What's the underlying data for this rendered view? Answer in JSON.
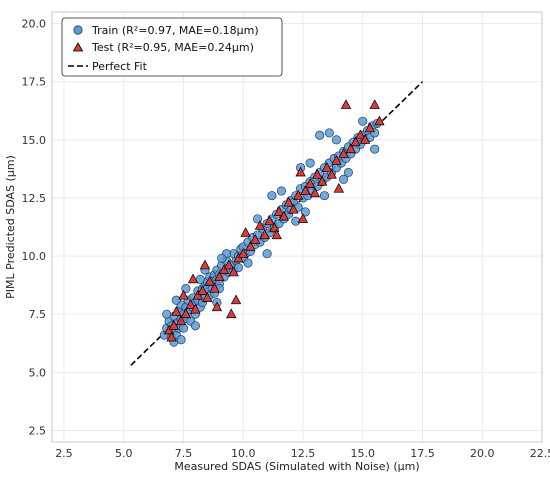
{
  "chart_data": {
    "type": "scatter",
    "xlabel": "Measured SDAS (Simulated with Noise) (μm)",
    "ylabel": "PIML Predicted SDAS (μm)",
    "xlim": [
      2.0,
      22.5
    ],
    "ylim": [
      2.0,
      20.5
    ],
    "xticks": [
      "2.5",
      "5.0",
      "7.5",
      "10.0",
      "12.5",
      "15.0",
      "17.5",
      "20.0",
      "22.5"
    ],
    "yticks": [
      "2.5",
      "5.0",
      "7.5",
      "10.0",
      "12.5",
      "15.0",
      "17.5",
      "20.0"
    ],
    "xtick_values": [
      2.5,
      5.0,
      7.5,
      10.0,
      12.5,
      15.0,
      17.5,
      20.0,
      22.5
    ],
    "ytick_values": [
      2.5,
      5.0,
      7.5,
      10.0,
      12.5,
      15.0,
      17.5,
      20.0
    ],
    "grid": true,
    "legend_position": "top-left",
    "legend": [
      {
        "label": "Train (R²=0.97, MAE=0.18μm)",
        "marker": "circle",
        "color": "#5b9bd5"
      },
      {
        "label": "Test (R²=0.95, MAE=0.24μm)",
        "marker": "triangle",
        "color": "#d93b3b"
      },
      {
        "label": "Perfect Fit",
        "marker": "dashed-line",
        "color": "#000000"
      }
    ],
    "perfect_fit": {
      "x": [
        5.3,
        17.5
      ],
      "y": [
        5.3,
        17.5
      ]
    },
    "series": [
      {
        "name": "Train (R²=0.97, MAE=0.18μm)",
        "color": "#5b9bd5",
        "marker": "circle",
        "points": [
          [
            6.7,
            6.6
          ],
          [
            6.8,
            6.9
          ],
          [
            6.9,
            7.2
          ],
          [
            7.0,
            6.5
          ],
          [
            7.0,
            7.0
          ],
          [
            7.1,
            6.8
          ],
          [
            7.1,
            7.4
          ],
          [
            7.2,
            7.1
          ],
          [
            7.2,
            6.6
          ],
          [
            7.3,
            7.6
          ],
          [
            7.3,
            6.9
          ],
          [
            7.4,
            7.3
          ],
          [
            7.4,
            7.9
          ],
          [
            7.5,
            7.5
          ],
          [
            7.5,
            6.9
          ],
          [
            7.6,
            7.8
          ],
          [
            7.6,
            7.3
          ],
          [
            7.7,
            8.1
          ],
          [
            7.7,
            7.6
          ],
          [
            7.8,
            7.7
          ],
          [
            7.8,
            7.2
          ],
          [
            7.9,
            8.2
          ],
          [
            7.9,
            7.8
          ],
          [
            8.0,
            8.0
          ],
          [
            8.0,
            7.5
          ],
          [
            8.1,
            8.5
          ],
          [
            8.1,
            8.1
          ],
          [
            8.2,
            8.3
          ],
          [
            8.2,
            7.8
          ],
          [
            8.3,
            8.6
          ],
          [
            8.3,
            8.0
          ],
          [
            8.4,
            8.7
          ],
          [
            8.4,
            8.2
          ],
          [
            8.5,
            8.6
          ],
          [
            8.5,
            8.9
          ],
          [
            8.6,
            8.3
          ],
          [
            8.6,
            9.1
          ],
          [
            8.7,
            8.6
          ],
          [
            8.7,
            8.9
          ],
          [
            8.8,
            9.2
          ],
          [
            8.8,
            8.4
          ],
          [
            8.9,
            9.0
          ],
          [
            8.9,
            9.4
          ],
          [
            9.0,
            8.8
          ],
          [
            9.0,
            9.2
          ],
          [
            9.1,
            9.6
          ],
          [
            9.2,
            9.1
          ],
          [
            9.3,
            9.4
          ],
          [
            9.3,
            9.8
          ],
          [
            9.4,
            9.3
          ],
          [
            9.5,
            9.6
          ],
          [
            9.6,
            10.1
          ],
          [
            9.6,
            9.4
          ],
          [
            9.7,
            9.8
          ],
          [
            9.8,
            10.0
          ],
          [
            9.9,
            10.3
          ],
          [
            10.0,
            9.9
          ],
          [
            10.0,
            10.4
          ],
          [
            10.1,
            10.1
          ],
          [
            10.2,
            10.6
          ],
          [
            10.3,
            10.2
          ],
          [
            10.4,
            10.8
          ],
          [
            10.5,
            10.5
          ],
          [
            10.6,
            10.9
          ],
          [
            10.7,
            10.6
          ],
          [
            10.8,
            11.2
          ],
          [
            10.9,
            10.8
          ],
          [
            11.0,
            11.4
          ],
          [
            11.1,
            11.0
          ],
          [
            11.2,
            11.6
          ],
          [
            11.3,
            11.2
          ],
          [
            11.4,
            11.8
          ],
          [
            11.5,
            11.4
          ],
          [
            11.6,
            12.0
          ],
          [
            11.7,
            11.6
          ],
          [
            11.8,
            12.2
          ],
          [
            11.9,
            11.8
          ],
          [
            12.0,
            12.4
          ],
          [
            12.0,
            12.0
          ],
          [
            12.1,
            12.3
          ],
          [
            12.2,
            12.6
          ],
          [
            12.3,
            12.1
          ],
          [
            12.4,
            12.9
          ],
          [
            12.5,
            12.5
          ],
          [
            12.6,
            13.0
          ],
          [
            12.7,
            12.6
          ],
          [
            12.8,
            13.2
          ],
          [
            12.9,
            12.8
          ],
          [
            13.0,
            13.4
          ],
          [
            13.1,
            13.0
          ],
          [
            13.2,
            13.6
          ],
          [
            13.3,
            13.2
          ],
          [
            13.4,
            13.8
          ],
          [
            13.5,
            13.4
          ],
          [
            13.6,
            14.0
          ],
          [
            13.7,
            13.6
          ],
          [
            13.8,
            14.2
          ],
          [
            13.9,
            13.8
          ],
          [
            14.0,
            14.3
          ],
          [
            14.1,
            14.0
          ],
          [
            14.2,
            14.5
          ],
          [
            14.3,
            14.2
          ],
          [
            14.4,
            14.7
          ],
          [
            14.5,
            14.4
          ],
          [
            14.6,
            14.9
          ],
          [
            14.7,
            14.6
          ],
          [
            14.8,
            15.1
          ],
          [
            14.9,
            14.8
          ],
          [
            15.0,
            15.2
          ],
          [
            15.1,
            15.0
          ],
          [
            15.2,
            15.4
          ],
          [
            15.3,
            15.1
          ],
          [
            15.4,
            15.6
          ],
          [
            15.5,
            15.3
          ],
          [
            15.6,
            15.7
          ],
          [
            6.8,
            7.5
          ],
          [
            7.2,
            8.1
          ],
          [
            7.6,
            8.6
          ],
          [
            8.0,
            7.0
          ],
          [
            8.4,
            9.4
          ],
          [
            8.9,
            8.0
          ],
          [
            9.3,
            10.1
          ],
          [
            9.8,
            9.5
          ],
          [
            10.6,
            11.6
          ],
          [
            11.0,
            10.1
          ],
          [
            11.6,
            12.8
          ],
          [
            12.2,
            11.5
          ],
          [
            12.8,
            14.0
          ],
          [
            13.4,
            12.6
          ],
          [
            13.9,
            15.0
          ],
          [
            14.4,
            13.6
          ],
          [
            15.0,
            15.8
          ],
          [
            15.5,
            14.6
          ],
          [
            12.4,
            13.8
          ],
          [
            13.2,
            15.2
          ],
          [
            13.6,
            15.3
          ],
          [
            11.2,
            12.6
          ],
          [
            9.1,
            9.9
          ],
          [
            9.0,
            8.6
          ],
          [
            7.1,
            6.3
          ],
          [
            7.4,
            6.4
          ],
          [
            8.2,
            9.0
          ],
          [
            10.2,
            9.7
          ],
          [
            12.6,
            11.9
          ],
          [
            14.2,
            13.3
          ]
        ]
      },
      {
        "name": "Test (R²=0.95, MAE=0.24μm)",
        "color": "#d93b3b",
        "marker": "triangle",
        "points": [
          [
            6.9,
            6.8
          ],
          [
            7.1,
            7.0
          ],
          [
            7.2,
            7.6
          ],
          [
            7.4,
            7.2
          ],
          [
            7.5,
            8.3
          ],
          [
            7.6,
            7.5
          ],
          [
            7.8,
            7.9
          ],
          [
            7.9,
            9.0
          ],
          [
            8.0,
            7.7
          ],
          [
            8.1,
            8.3
          ],
          [
            8.3,
            8.5
          ],
          [
            8.5,
            8.2
          ],
          [
            8.6,
            8.9
          ],
          [
            8.8,
            8.6
          ],
          [
            8.9,
            7.8
          ],
          [
            9.0,
            9.1
          ],
          [
            9.2,
            9.4
          ],
          [
            9.4,
            9.6
          ],
          [
            9.5,
            7.5
          ],
          [
            9.6,
            9.3
          ],
          [
            9.8,
            9.9
          ],
          [
            10.0,
            10.1
          ],
          [
            10.1,
            11.0
          ],
          [
            10.3,
            10.4
          ],
          [
            10.5,
            10.7
          ],
          [
            10.7,
            11.3
          ],
          [
            10.9,
            10.9
          ],
          [
            11.1,
            11.5
          ],
          [
            11.3,
            11.2
          ],
          [
            11.5,
            11.9
          ],
          [
            11.7,
            11.7
          ],
          [
            11.9,
            12.3
          ],
          [
            12.1,
            12.0
          ],
          [
            12.3,
            12.6
          ],
          [
            12.5,
            11.6
          ],
          [
            12.6,
            12.8
          ],
          [
            12.8,
            13.1
          ],
          [
            13.0,
            12.7
          ],
          [
            13.1,
            13.5
          ],
          [
            13.3,
            13.2
          ],
          [
            13.5,
            13.8
          ],
          [
            13.7,
            13.5
          ],
          [
            13.9,
            14.1
          ],
          [
            14.0,
            12.9
          ],
          [
            14.2,
            14.4
          ],
          [
            14.3,
            16.5
          ],
          [
            14.5,
            14.6
          ],
          [
            14.7,
            14.9
          ],
          [
            14.9,
            15.2
          ],
          [
            15.1,
            15.0
          ],
          [
            15.3,
            15.5
          ],
          [
            15.5,
            16.5
          ],
          [
            15.7,
            15.8
          ],
          [
            7.0,
            6.5
          ],
          [
            8.4,
            9.6
          ],
          [
            9.7,
            8.1
          ],
          [
            11.4,
            10.9
          ],
          [
            12.4,
            13.6
          ]
        ]
      }
    ]
  }
}
